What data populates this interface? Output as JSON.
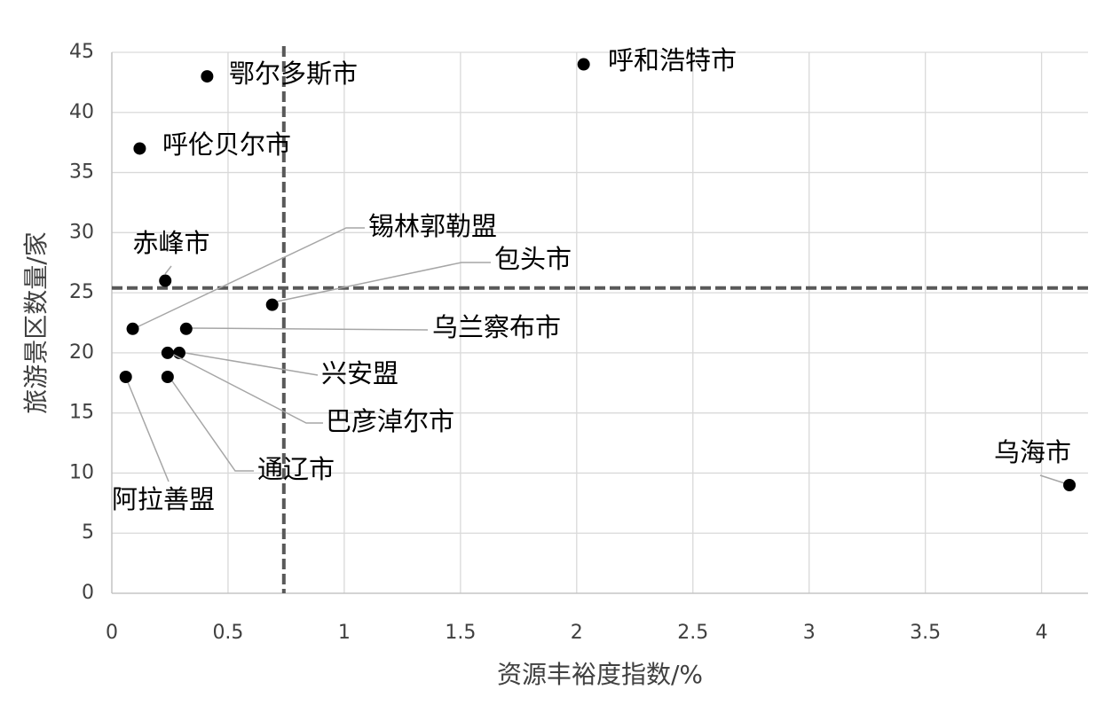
{
  "chart_data": {
    "type": "scatter",
    "x_label": "资源丰裕度指数/%",
    "y_label": "旅游景区数量/家",
    "point_labels": [
      "鄂尔多斯市",
      "呼和浩特市",
      "呼伦贝尔市",
      "赤峰市",
      "包头市",
      "锡林郭勒盟",
      "乌兰察布市",
      "兴安盟",
      "巴彦淖尔市",
      "通辽市",
      "阿拉善盟",
      "乌海市"
    ],
    "x": [
      0.41,
      2.03,
      0.12,
      0.23,
      0.69,
      0.09,
      0.32,
      0.29,
      0.24,
      0.24,
      0.06,
      4.12
    ],
    "values": [
      43,
      44,
      37,
      26,
      24,
      22,
      22,
      20,
      20,
      18,
      18,
      9
    ],
    "color": "#000000",
    "xlim": [
      0,
      4.2
    ],
    "xticks": [
      0,
      0.5,
      1,
      1.5,
      2,
      2.5,
      3,
      3.5,
      4
    ],
    "ylim": [
      0,
      45
    ],
    "yticks": [
      0,
      5,
      10,
      15,
      20,
      25,
      30,
      35,
      40,
      45
    ],
    "grid": true,
    "reference_lines": {
      "x": 0.74,
      "y": 25.4,
      "color": "#595959"
    }
  }
}
